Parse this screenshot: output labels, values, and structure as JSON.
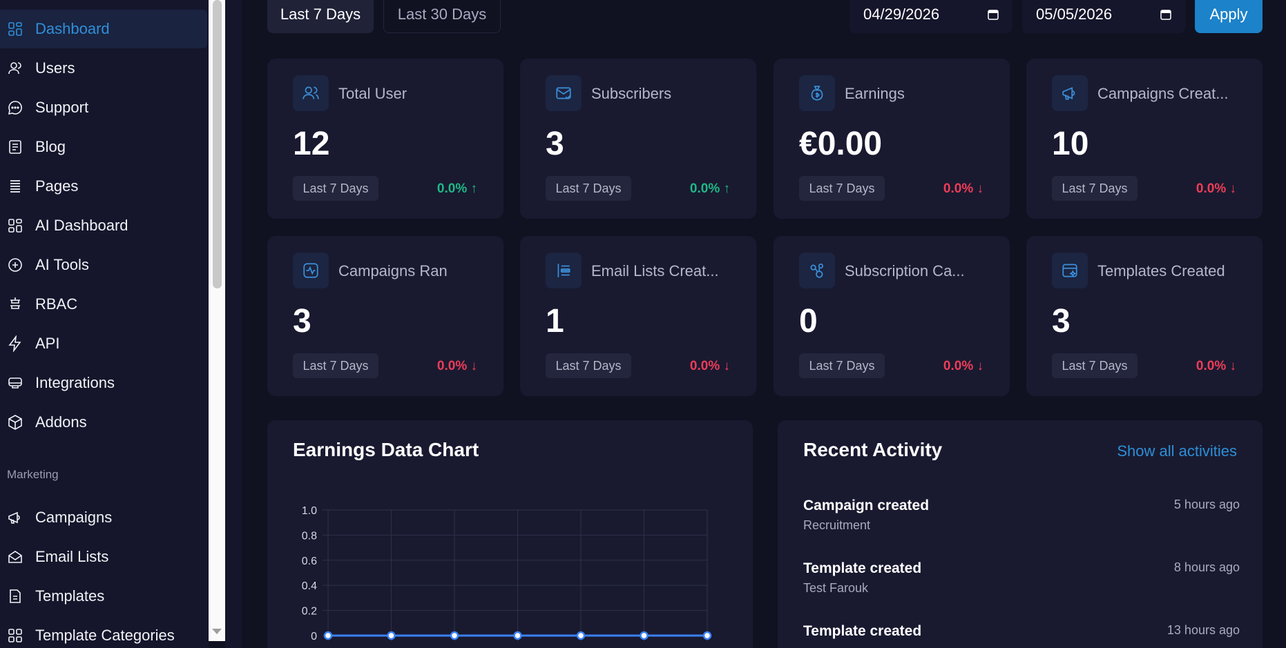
{
  "sidebar": {
    "items": [
      {
        "label": "Dashboard",
        "icon": "grid-icon",
        "active": true
      },
      {
        "label": "Users",
        "icon": "user-icon"
      },
      {
        "label": "Support",
        "icon": "chat-icon"
      },
      {
        "label": "Blog",
        "icon": "document-icon"
      },
      {
        "label": "Pages",
        "icon": "list-icon"
      },
      {
        "label": "AI Dashboard",
        "icon": "grid-icon"
      },
      {
        "label": "AI Tools",
        "icon": "plus-circle-icon"
      },
      {
        "label": "RBAC",
        "icon": "shield-icon"
      },
      {
        "label": "API",
        "icon": "bolt-icon"
      },
      {
        "label": "Integrations",
        "icon": "plug-icon"
      },
      {
        "label": "Addons",
        "icon": "cube-icon"
      }
    ],
    "section_label": "Marketing",
    "marketing_items": [
      {
        "label": "Campaigns",
        "icon": "megaphone-icon"
      },
      {
        "label": "Email Lists",
        "icon": "envelope-icon"
      },
      {
        "label": "Templates",
        "icon": "template-icon"
      },
      {
        "label": "Template Categories",
        "icon": "grid-icon"
      }
    ]
  },
  "filters": {
    "range_active": "Last 7 Days",
    "range_other": "Last 30 Days",
    "date_from": "04/29/2026",
    "date_to": "05/05/2026",
    "apply_label": "Apply"
  },
  "cards": [
    {
      "label": "Total User",
      "value": "12",
      "period": "Last 7 Days",
      "change": "0.0% ↑",
      "trend": "up",
      "icon": "users-icon"
    },
    {
      "label": "Subscribers",
      "value": "3",
      "period": "Last 7 Days",
      "change": "0.0% ↑",
      "trend": "up",
      "icon": "mail-check-icon"
    },
    {
      "label": "Earnings",
      "value": "€0.00",
      "period": "Last 7 Days",
      "change": "0.0% ↓",
      "trend": "down",
      "icon": "money-bag-icon"
    },
    {
      "label": "Campaigns Creat...",
      "value": "10",
      "period": "Last 7 Days",
      "change": "0.0% ↓",
      "trend": "down",
      "icon": "megaphone-icon"
    },
    {
      "label": "Campaigns Ran",
      "value": "3",
      "period": "Last 7 Days",
      "change": "0.0% ↓",
      "trend": "down",
      "icon": "activity-icon"
    },
    {
      "label": "Email Lists Creat...",
      "value": "1",
      "period": "Last 7 Days",
      "change": "0.0% ↓",
      "trend": "down",
      "icon": "list-icon"
    },
    {
      "label": "Subscription Ca...",
      "value": "0",
      "period": "Last 7 Days",
      "change": "0.0% ↓",
      "trend": "down",
      "icon": "share-icon"
    },
    {
      "label": "Templates Created",
      "value": "3",
      "period": "Last 7 Days",
      "change": "0.0% ↓",
      "trend": "down",
      "icon": "template-icon"
    }
  ],
  "chart_panel": {
    "title": "Earnings Data Chart"
  },
  "chart_data": {
    "type": "line",
    "title": "Earnings Data Chart",
    "x": [
      "",
      "",
      "",
      "",
      "",
      "",
      ""
    ],
    "series": [
      {
        "values": [
          0,
          0,
          0,
          0,
          0,
          0,
          0
        ],
        "color": "#3b82f6"
      }
    ],
    "ylim": [
      0,
      1.0
    ],
    "yticks": [
      "1.0",
      "0.8",
      "0.6",
      "0.4",
      "0.2",
      "0"
    ],
    "grid": true
  },
  "activity": {
    "title": "Recent Activity",
    "show_all": "Show all activities",
    "items": [
      {
        "title": "Campaign created",
        "subtitle": "Recruitment",
        "time": "5 hours ago"
      },
      {
        "title": "Template created",
        "subtitle": "Test Farouk",
        "time": "8 hours ago"
      },
      {
        "title": "Template created",
        "subtitle": "",
        "time": "13 hours ago"
      }
    ]
  },
  "colors": {
    "accent": "#1c82c9",
    "up": "#1fb886",
    "down": "#ef3d57",
    "card_bg": "#191a30",
    "page_bg": "#111221"
  }
}
